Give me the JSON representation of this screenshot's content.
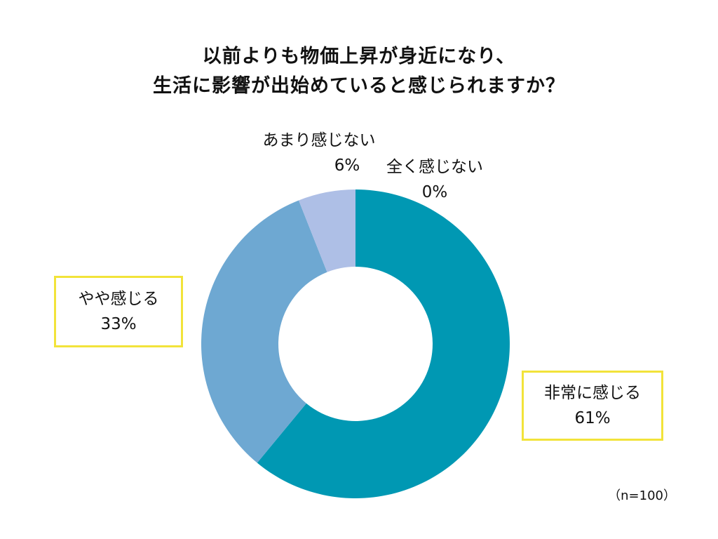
{
  "chart_data": {
    "type": "donut",
    "title_lines": [
      "以前よりも物価上昇が身近になり、",
      "生活に影響が出始めていると感じられますか？"
    ],
    "slices": [
      {
        "label": "非常に感じる",
        "value": 61,
        "value_label": "61%",
        "color": "#0098b3"
      },
      {
        "label": "やや感じる",
        "value": 33,
        "value_label": "33%",
        "color": "#6ea8d2"
      },
      {
        "label": "あまり感じない",
        "value": 6,
        "value_label": "6%",
        "color": "#aebfe6"
      },
      {
        "label": "全く感じない",
        "value": 0,
        "value_label": "0%",
        "color": "#d9e1f2"
      }
    ],
    "start": "12 o'clock",
    "direction": "clockwise",
    "highlight_border_color": "#f2e33a",
    "sample_note": "（n=100）"
  }
}
